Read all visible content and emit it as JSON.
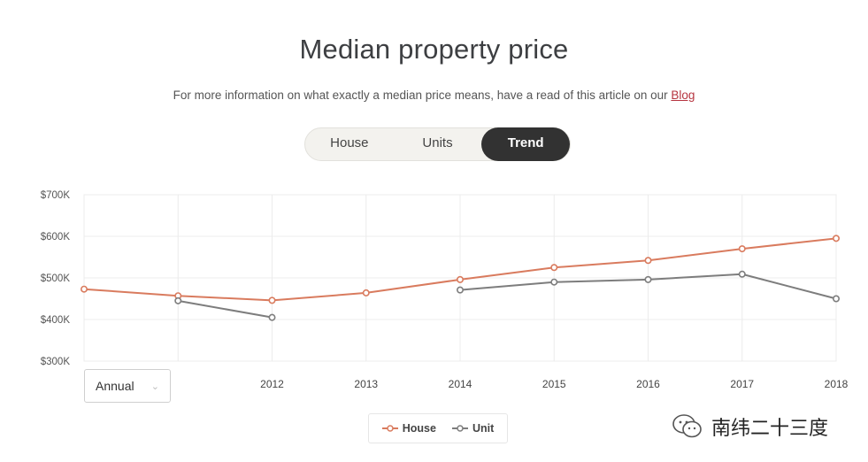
{
  "page": {
    "title": "Median property price",
    "subtitle_text": "For more information on what exactly a median price means, have a read of this article on our ",
    "subtitle_link": "Blog"
  },
  "toggle": {
    "options": [
      {
        "label": "House",
        "active": false
      },
      {
        "label": "Units",
        "active": false
      },
      {
        "label": "Trend",
        "active": true
      }
    ]
  },
  "controls": {
    "period_select": {
      "value": "Annual"
    }
  },
  "legend": {
    "items": [
      "House",
      "Unit"
    ]
  },
  "watermark": {
    "text": "南纬二十三度",
    "icon": "wechat-icon"
  },
  "colors": {
    "house": "#d97b5e",
    "unit": "#7d7d7d",
    "active_toggle": "#323232",
    "link": "#b6343f"
  },
  "chart_data": {
    "type": "line",
    "x_ticks": [
      "",
      "",
      "2012",
      "2013",
      "2014",
      "2015",
      "2016",
      "2017",
      "2018"
    ],
    "y_ticks": [
      "$700K",
      "$600K",
      "$500K",
      "$400K",
      "$300K"
    ],
    "ylim": [
      300000,
      700000
    ],
    "series": [
      {
        "name": "House",
        "values": [
          473000,
          457000,
          446000,
          464000,
          496000,
          525000,
          542000,
          570000,
          595000
        ]
      },
      {
        "name": "Unit",
        "values": [
          null,
          445000,
          405000,
          null,
          471000,
          490000,
          496000,
          509000,
          450000
        ]
      }
    ]
  }
}
